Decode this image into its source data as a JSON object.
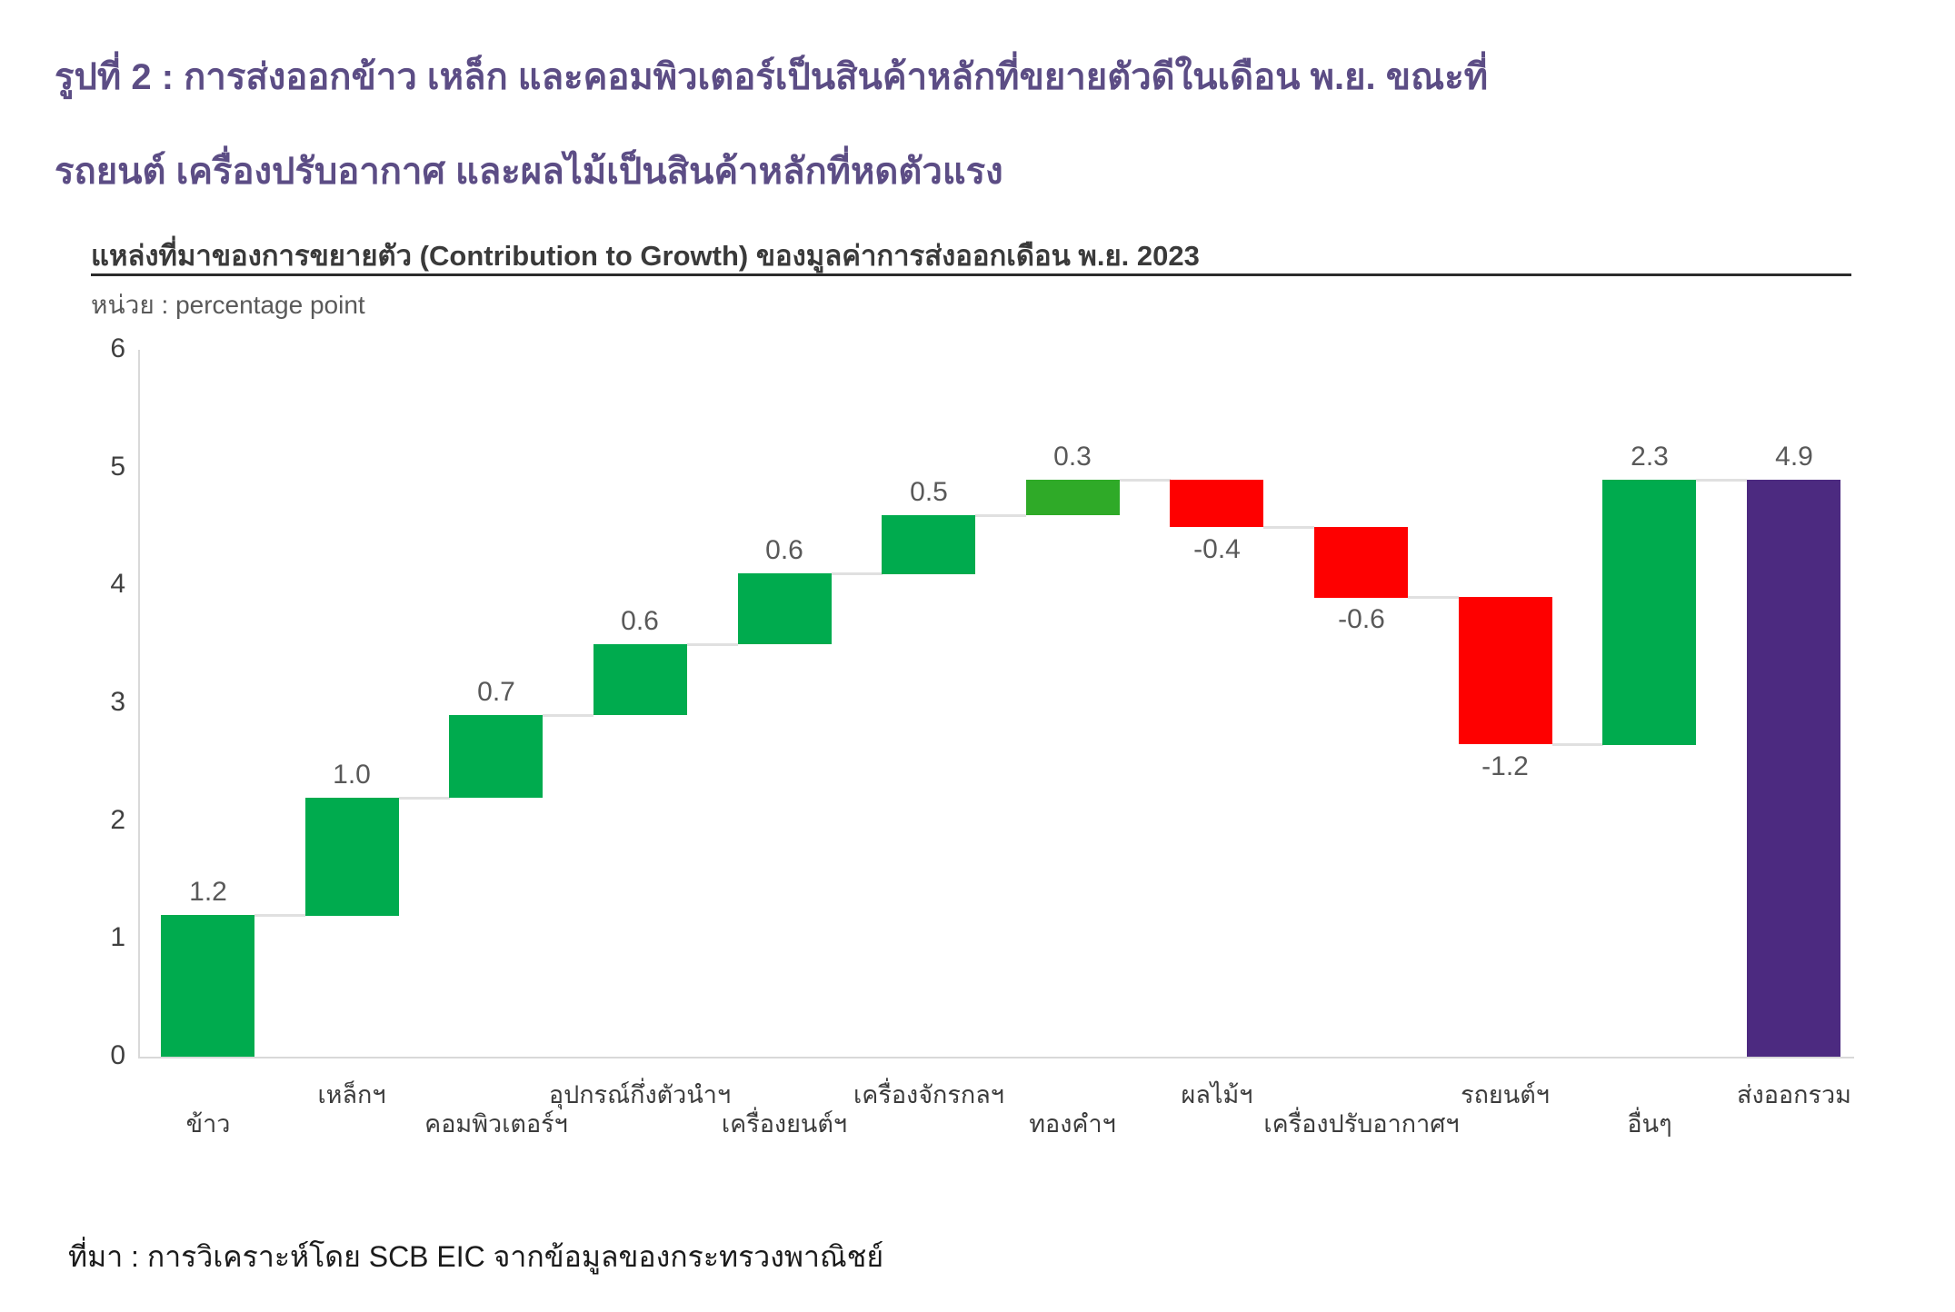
{
  "title": {
    "line1": "รูปที่ 2 : การส่งออกข้าว เหล็ก และคอมพิวเตอร์เป็นสินค้าหลักที่ขยายตัวดีในเดือน พ.ย. ขณะที่",
    "line2": "รถยนต์ เครื่องปรับอากาศ และผลไม้เป็นสินค้าหลักที่หดตัวแรง"
  },
  "chart": {
    "subtitle": "แหล่งที่มาของการขยายตัว (Contribution to Growth) ของมูลค่าการส่งออกเดือน พ.ย. 2023",
    "unit_label": "หน่วย : percentage point"
  },
  "footer": {
    "source": "ที่มา : การวิเคราะห์โดย SCB EIC จากข้อมูลของกระทรวงพาณิชย์"
  },
  "chart_data": {
    "type": "bar",
    "subtype": "waterfall",
    "title": "แหล่งที่มาของการขยายตัว (Contribution to Growth) ของมูลค่าการส่งออกเดือน พ.ย. 2023",
    "ylabel": "percentage point",
    "ylim": [
      0,
      6
    ],
    "yticks": [
      0,
      1,
      2,
      3,
      4,
      5,
      6
    ],
    "grid": false,
    "legend": false,
    "categories": [
      "ข้าว",
      "เหล็กฯ",
      "คอมพิวเตอร์ฯ",
      "อุปกรณ์กึ่งตัวนำฯ",
      "เครื่องยนต์ฯ",
      "เครื่องจักรกลฯ",
      "ทองคำฯ",
      "ผลไม้ฯ",
      "เครื่องปรับอากาศฯ",
      "รถยนต์ฯ",
      "อื่นๆ",
      "ส่งออกรวม"
    ],
    "values": [
      1.2,
      1.0,
      0.7,
      0.6,
      0.6,
      0.5,
      0.3,
      -0.4,
      -0.6,
      -1.2,
      2.3,
      4.9
    ],
    "colors": {
      "green": "#00AB4E",
      "lime": "#2FAA28",
      "red": "#FE0000",
      "purple": "#4C2A80"
    },
    "bars": [
      {
        "category": "ข้าว",
        "label": "1.2",
        "value": 1.2,
        "start": 0,
        "end": 1.2,
        "color": "green",
        "row": "lower"
      },
      {
        "category": "เหล็กฯ",
        "label": "1.0",
        "value": 1.0,
        "start": 1.2,
        "end": 2.2,
        "color": "green",
        "row": "upper"
      },
      {
        "category": "คอมพิวเตอร์ฯ",
        "label": "0.7",
        "value": 0.7,
        "start": 2.2,
        "end": 2.9,
        "color": "green",
        "row": "lower"
      },
      {
        "category": "อุปกรณ์กึ่งตัวนำฯ",
        "label": "0.6",
        "value": 0.6,
        "start": 2.9,
        "end": 3.5,
        "color": "green",
        "row": "upper"
      },
      {
        "category": "เครื่องยนต์ฯ",
        "label": "0.6",
        "value": 0.6,
        "start": 3.5,
        "end": 4.1,
        "color": "green",
        "row": "lower"
      },
      {
        "category": "เครื่องจักรกลฯ",
        "label": "0.5",
        "value": 0.5,
        "start": 4.1,
        "end": 4.6,
        "color": "green",
        "row": "upper"
      },
      {
        "category": "ทองคำฯ",
        "label": "0.3",
        "value": 0.3,
        "start": 4.6,
        "end": 4.9,
        "color": "lime",
        "row": "lower"
      },
      {
        "category": "ผลไม้ฯ",
        "label": "-0.4",
        "value": -0.4,
        "start": 4.9,
        "end": 4.5,
        "color": "red",
        "row": "upper"
      },
      {
        "category": "เครื่องปรับอากาศฯ",
        "label": "-0.6",
        "value": -0.6,
        "start": 4.5,
        "end": 3.9,
        "color": "red",
        "row": "lower"
      },
      {
        "category": "รถยนต์ฯ",
        "label": "-1.2",
        "value": -1.2,
        "start": 3.9,
        "end": 2.65,
        "color": "red",
        "row": "upper"
      },
      {
        "category": "อื่นๆ",
        "label": "2.3",
        "value": 2.3,
        "start": 2.65,
        "end": 4.9,
        "color": "green",
        "row": "lower"
      },
      {
        "category": "ส่งออกรวม",
        "label": "4.9",
        "value": 4.9,
        "start": 0,
        "end": 4.9,
        "color": "purple",
        "row": "upper",
        "total": true
      }
    ]
  }
}
